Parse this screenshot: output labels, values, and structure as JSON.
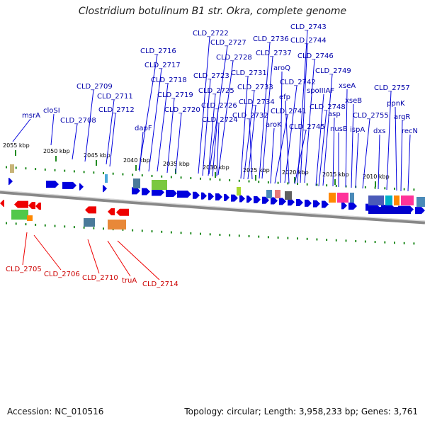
{
  "title": "Clostridium botulinum B1 str. Okra, complete genome",
  "footer": {
    "accession_label": "Accession:",
    "accession": "NC_010516",
    "topology_label": "Topology:",
    "topology": "circular",
    "length_label": "Length:",
    "length": "3,958,233 bp",
    "genes_label": "Genes:",
    "genes": "3,761"
  },
  "colors": {
    "plus_strand": "#0000dd",
    "minus_strand": "#ee0000",
    "plus_label": "#0000aa",
    "minus_label": "#cc0000",
    "tick": "#228b22",
    "backbone": "#808080"
  },
  "ticks": [
    "2055 kbp",
    "2050 kbp",
    "2045 kbp",
    "2040 kbp",
    "2035 kbp",
    "2030 kbp",
    "2025 kbp",
    "2020 kbp",
    "2015 kbp",
    "2010 kbp"
  ],
  "plus_strand_labels": [
    "msrA",
    "cloSI",
    "CLD_2708",
    "CLD_2709",
    "CLD_2711",
    "CLD_2712",
    "CLD_2716",
    "CLD_2717",
    "CLD_2718",
    "dapF",
    "CLD_2719",
    "CLD_2720",
    "CLD_2722",
    "CLD_2727",
    "CLD_2728",
    "CLD_2723",
    "CLD_2725",
    "CLD_2726",
    "CLD_2724",
    "CLD_2736",
    "CLD_2737",
    "CLD_2731",
    "CLD_2733",
    "CLD_2734",
    "CLD_2732",
    "CLD_2743",
    "CLD_2744",
    "CLD_2746",
    "aroQ",
    "CLD_2742",
    "efp",
    "aroK",
    "CLD_2741",
    "CLD_2745",
    "CLD_2749",
    "spoIIIAF",
    "CLD_2748",
    "asp",
    "nusB",
    "xseA",
    "xseB",
    "ispA",
    "CLD_2755",
    "dxs",
    "CLD_2757",
    "ppnK",
    "argR",
    "recN"
  ],
  "minus_strand_labels": [
    "CLD_2705",
    "CLD_2706",
    "CLD_2710",
    "truA",
    "CLD_2714"
  ]
}
